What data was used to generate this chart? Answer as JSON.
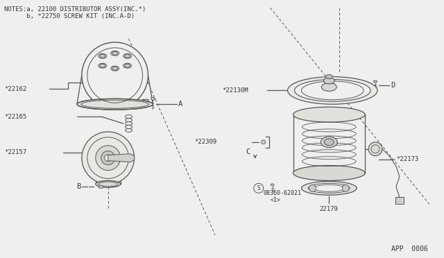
{
  "bg_color": "#f0eff0",
  "line_color": "#555555",
  "text_color": "#333333",
  "part_label_app": "APP  0006",
  "notes_line1": "NOTES:a, 22100 DISTRIBUTOR ASSY(INC.*)",
  "notes_line2": "      b, *22750 SCREW KIT (INC.A-D)"
}
